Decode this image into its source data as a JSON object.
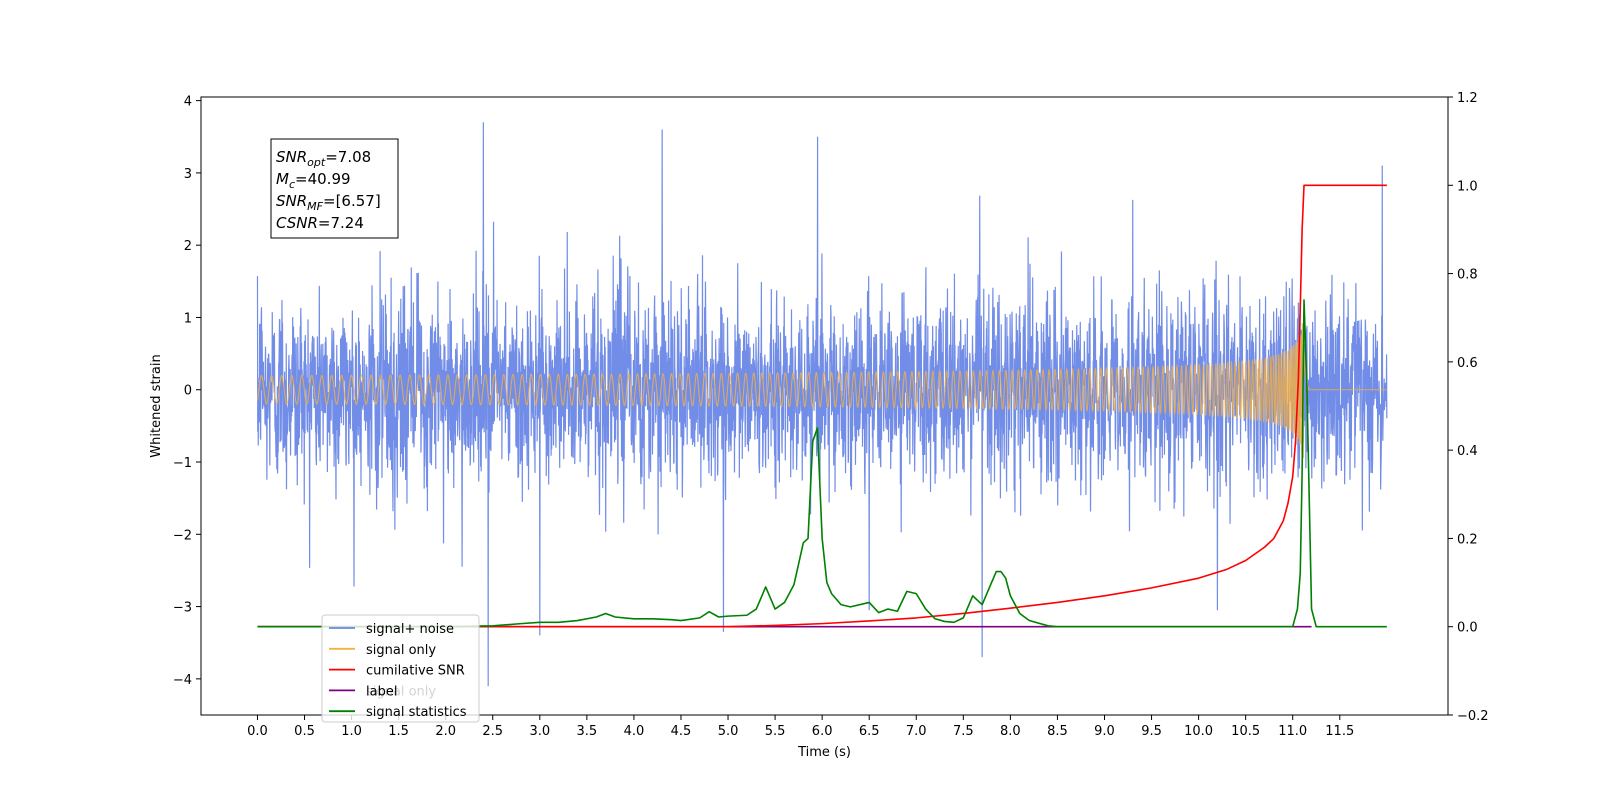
{
  "chart_data": {
    "type": "line",
    "title": "",
    "xlabel": "Time (s)",
    "ylabel": "Whitened strain",
    "xlim": [
      -0.6,
      12.65
    ],
    "ylim": [
      -4.5,
      4.05
    ],
    "y2lim": [
      -0.2,
      1.2
    ],
    "x_ticks": [
      0.0,
      0.5,
      1.0,
      1.5,
      2.0,
      2.5,
      3.0,
      3.5,
      4.0,
      4.5,
      5.0,
      5.5,
      6.0,
      6.5,
      7.0,
      7.5,
      8.0,
      8.5,
      9.0,
      9.5,
      10.0,
      10.5,
      11.0,
      11.5
    ],
    "x_tick_labels": [
      "0.0",
      "0.5",
      "1.0",
      "1.5",
      "2.0",
      "2.5",
      "3.0",
      "3.5",
      "4.0",
      "4.5",
      "5.0",
      "5.5",
      "6.0",
      "6.5",
      "7.0",
      "7.5",
      "8.0",
      "8.5",
      "9.0",
      "9.5",
      "10.0",
      "10.5",
      "11.0",
      "11.5"
    ],
    "y_ticks": [
      -4,
      -3,
      -2,
      -1,
      0,
      1,
      2,
      3,
      4
    ],
    "y_tick_labels": [
      "−4",
      "−3",
      "−2",
      "−1",
      "0",
      "1",
      "2",
      "3",
      "4"
    ],
    "y2_ticks": [
      -0.2,
      0.0,
      0.2,
      0.4,
      0.6,
      0.8,
      1.0,
      1.2
    ],
    "y2_tick_labels": [
      "−0.2",
      "0.0",
      "0.2",
      "0.4",
      "0.6",
      "0.8",
      "1.0",
      "1.2"
    ],
    "grid": false,
    "legend_placement": "lower-left",
    "series": [
      {
        "name": "signal+ noise",
        "axis": "left",
        "color": "#6a87e6",
        "kind": "noisy",
        "x_range": [
          0.0,
          12.0
        ],
        "envelope_typical": 1.6,
        "peaks": [
          [
            2.4,
            3.7
          ],
          [
            4.3,
            3.6
          ],
          [
            5.95,
            3.5
          ],
          [
            11.95,
            3.1
          ],
          [
            2.45,
            -4.1
          ],
          [
            7.7,
            -3.7
          ],
          [
            3.0,
            -3.4
          ],
          [
            4.95,
            -3.35
          ],
          [
            10.2,
            -3.05
          ],
          [
            6.5,
            -3.05
          ]
        ]
      },
      {
        "name": "signal only",
        "axis": "left",
        "color": "#f5b041",
        "kind": "chirp",
        "x_range": [
          0.0,
          12.0
        ],
        "merger_time": 11.12,
        "peak_amplitude": 0.95
      },
      {
        "name": "cumilative SNR",
        "axis": "right",
        "color": "#ff0000",
        "x": [
          0.0,
          5.0,
          5.5,
          6.0,
          6.5,
          7.0,
          7.5,
          8.0,
          8.5,
          9.0,
          9.5,
          10.0,
          10.3,
          10.5,
          10.7,
          10.8,
          10.9,
          10.95,
          11.0,
          11.03,
          11.06,
          11.08,
          11.1,
          11.12,
          11.2,
          12.0
        ],
        "values": [
          0.0,
          0.0,
          0.003,
          0.007,
          0.013,
          0.02,
          0.03,
          0.042,
          0.055,
          0.07,
          0.088,
          0.11,
          0.13,
          0.15,
          0.18,
          0.2,
          0.24,
          0.28,
          0.34,
          0.42,
          0.56,
          0.72,
          0.9,
          1.0,
          1.0,
          1.0
        ]
      },
      {
        "name": "label",
        "axis": "right",
        "color": "#800080",
        "x": [
          0.0,
          11.2
        ],
        "values": [
          0.0,
          0.0
        ]
      },
      {
        "name": "signal statistics",
        "axis": "right",
        "color": "#008000",
        "x": [
          0.0,
          2.0,
          2.5,
          2.8,
          3.0,
          3.2,
          3.4,
          3.6,
          3.7,
          3.8,
          4.0,
          4.2,
          4.4,
          4.5,
          4.7,
          4.8,
          4.9,
          5.0,
          5.2,
          5.3,
          5.4,
          5.5,
          5.6,
          5.7,
          5.8,
          5.85,
          5.9,
          5.95,
          6.0,
          6.05,
          6.1,
          6.2,
          6.3,
          6.5,
          6.6,
          6.7,
          6.8,
          6.9,
          7.0,
          7.1,
          7.2,
          7.3,
          7.4,
          7.5,
          7.6,
          7.7,
          7.8,
          7.85,
          7.9,
          7.95,
          8.0,
          8.1,
          8.2,
          8.4,
          8.5,
          9.0,
          10.0,
          11.0,
          11.05,
          11.08,
          11.1,
          11.12,
          11.15,
          11.2,
          11.25,
          11.3,
          12.0
        ],
        "values": [
          0.0,
          0.0,
          0.002,
          0.007,
          0.01,
          0.01,
          0.014,
          0.022,
          0.03,
          0.022,
          0.018,
          0.018,
          0.016,
          0.014,
          0.02,
          0.034,
          0.022,
          0.024,
          0.026,
          0.04,
          0.09,
          0.04,
          0.055,
          0.095,
          0.19,
          0.2,
          0.42,
          0.45,
          0.2,
          0.1,
          0.075,
          0.05,
          0.045,
          0.055,
          0.032,
          0.04,
          0.035,
          0.08,
          0.075,
          0.04,
          0.018,
          0.012,
          0.01,
          0.02,
          0.07,
          0.05,
          0.1,
          0.125,
          0.125,
          0.11,
          0.07,
          0.03,
          0.014,
          0.002,
          0.0,
          0.0,
          0.0,
          0.0,
          0.04,
          0.12,
          0.35,
          0.74,
          0.55,
          0.04,
          0.0,
          0.0,
          0.0
        ]
      }
    ],
    "annotation": {
      "lines": [
        {
          "sym": "SNR",
          "sub": "opt",
          "rest": "=7.08"
        },
        {
          "sym": "M",
          "sub": "c",
          "rest": "=40.99"
        },
        {
          "sym": "SNR",
          "sub": "MF",
          "rest": "=[6.57]"
        },
        {
          "sym": "CSNR",
          "sub": "",
          "rest": "=7.24"
        }
      ]
    },
    "legend_entries": [
      "signal+ noise",
      "signal only",
      "cumilative SNR",
      "label",
      "signal statistics"
    ],
    "legend_overlaid_text": "signal only"
  }
}
